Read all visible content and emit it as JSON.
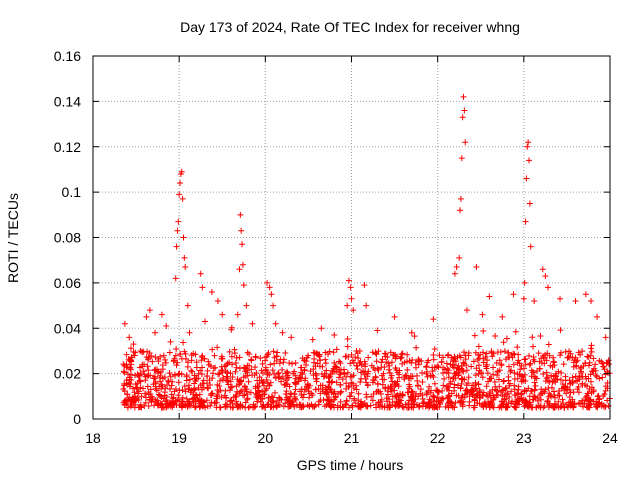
{
  "chart_data": {
    "type": "scatter",
    "title": "Day 173 of 2024, Rate Of TEC Index for receiver whng",
    "xlabel": "GPS time / hours",
    "ylabel": "ROTI / TECUs",
    "xlim": [
      18,
      24
    ],
    "ylim": [
      0,
      0.16
    ],
    "x_ticks": [
      18,
      19,
      20,
      21,
      22,
      23,
      24
    ],
    "x_tick_labels": [
      "18",
      "19",
      "20",
      "21",
      "22",
      "23",
      "24"
    ],
    "y_ticks": [
      0,
      0.02,
      0.04,
      0.06,
      0.08,
      0.1,
      0.12,
      0.14,
      0.16
    ],
    "y_tick_labels": [
      "0",
      "0.02",
      "0.04",
      "0.06",
      "0.08",
      "0.1",
      "0.12",
      "0.14",
      "0.16"
    ],
    "grid": true,
    "marker": "plus",
    "color": "#ff0000",
    "background_band": {
      "x_range": [
        18.35,
        24
      ],
      "y_typical": [
        0.005,
        0.03
      ],
      "note": "dense cluster of points between 0.005 and 0.03 TECU/min across the full observed time span"
    },
    "series": [
      {
        "name": "ROTI",
        "points": [
          [
            18.37,
            0.042
          ],
          [
            18.42,
            0.036
          ],
          [
            18.47,
            0.033
          ],
          [
            18.55,
            0.03
          ],
          [
            18.62,
            0.045
          ],
          [
            18.66,
            0.048
          ],
          [
            18.72,
            0.038
          ],
          [
            18.8,
            0.046
          ],
          [
            18.85,
            0.041
          ],
          [
            18.9,
            0.034
          ],
          [
            18.96,
            0.062
          ],
          [
            18.97,
            0.076
          ],
          [
            18.98,
            0.083
          ],
          [
            18.99,
            0.087
          ],
          [
            19.0,
            0.099
          ],
          [
            19.01,
            0.104
          ],
          [
            19.02,
            0.108
          ],
          [
            19.03,
            0.109
          ],
          [
            19.04,
            0.097
          ],
          [
            19.05,
            0.08
          ],
          [
            19.06,
            0.071
          ],
          [
            19.07,
            0.067
          ],
          [
            19.1,
            0.05
          ],
          [
            19.12,
            0.038
          ],
          [
            19.25,
            0.064
          ],
          [
            19.27,
            0.058
          ],
          [
            19.3,
            0.043
          ],
          [
            19.38,
            0.056
          ],
          [
            19.45,
            0.052
          ],
          [
            19.5,
            0.046
          ],
          [
            19.68,
            0.046
          ],
          [
            19.7,
            0.066
          ],
          [
            19.71,
            0.09
          ],
          [
            19.72,
            0.083
          ],
          [
            19.73,
            0.077
          ],
          [
            19.74,
            0.068
          ],
          [
            19.75,
            0.059
          ],
          [
            19.78,
            0.05
          ],
          [
            19.85,
            0.042
          ],
          [
            20.02,
            0.06
          ],
          [
            20.05,
            0.058
          ],
          [
            20.07,
            0.055
          ],
          [
            20.09,
            0.05
          ],
          [
            20.12,
            0.042
          ],
          [
            20.2,
            0.038
          ],
          [
            20.3,
            0.036
          ],
          [
            20.55,
            0.035
          ],
          [
            20.65,
            0.04
          ],
          [
            20.8,
            0.037
          ],
          [
            20.95,
            0.05
          ],
          [
            20.97,
            0.061
          ],
          [
            20.99,
            0.058
          ],
          [
            21.0,
            0.053
          ],
          [
            21.02,
            0.048
          ],
          [
            21.15,
            0.059
          ],
          [
            21.17,
            0.05
          ],
          [
            21.3,
            0.039
          ],
          [
            21.5,
            0.045
          ],
          [
            21.7,
            0.038
          ],
          [
            21.95,
            0.044
          ],
          [
            22.2,
            0.064
          ],
          [
            22.22,
            0.067
          ],
          [
            22.25,
            0.071
          ],
          [
            22.26,
            0.092
          ],
          [
            22.27,
            0.097
          ],
          [
            22.28,
            0.115
          ],
          [
            22.29,
            0.133
          ],
          [
            22.3,
            0.142
          ],
          [
            22.31,
            0.136
          ],
          [
            22.32,
            0.122
          ],
          [
            22.34,
            0.048
          ],
          [
            22.45,
            0.067
          ],
          [
            22.52,
            0.046
          ],
          [
            22.6,
            0.054
          ],
          [
            22.75,
            0.045
          ],
          [
            22.88,
            0.055
          ],
          [
            23.0,
            0.053
          ],
          [
            23.01,
            0.06
          ],
          [
            23.02,
            0.087
          ],
          [
            23.03,
            0.106
          ],
          [
            23.04,
            0.12
          ],
          [
            23.05,
            0.122
          ],
          [
            23.06,
            0.114
          ],
          [
            23.07,
            0.095
          ],
          [
            23.08,
            0.076
          ],
          [
            23.12,
            0.052
          ],
          [
            23.22,
            0.066
          ],
          [
            23.25,
            0.063
          ],
          [
            23.28,
            0.058
          ],
          [
            23.42,
            0.053
          ],
          [
            23.6,
            0.052
          ],
          [
            23.72,
            0.055
          ],
          [
            23.78,
            0.052
          ],
          [
            23.85,
            0.045
          ],
          [
            23.95,
            0.036
          ]
        ]
      }
    ]
  }
}
